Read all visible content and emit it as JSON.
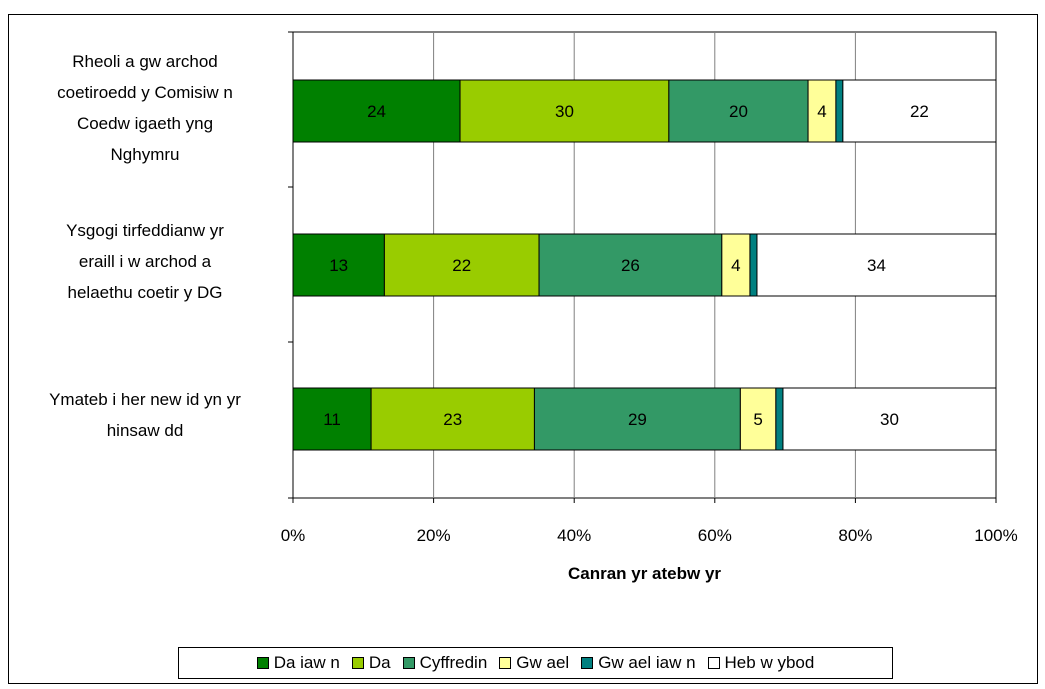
{
  "chart_data": {
    "type": "bar",
    "orientation": "horizontal",
    "stacked": "percent",
    "categories": [
      [
        "Rheoli a gw archod",
        "coetiroedd y Comisiw n",
        "Coedw igaeth yng",
        "Nghymru"
      ],
      [
        "Ysgogi tirfeddianw yr",
        "eraill i w archod a",
        "helaethu coetir y DG"
      ],
      [
        "Ymateb i her new id yn yr",
        "hinsaw dd"
      ]
    ],
    "series": [
      {
        "name": "Da iaw n",
        "color": "#008000",
        "values": [
          24,
          13,
          11
        ]
      },
      {
        "name": "Da",
        "color": "#99CC00",
        "values": [
          30,
          22,
          23
        ]
      },
      {
        "name": "Cyffredin",
        "color": "#339966",
        "values": [
          20,
          26,
          29
        ]
      },
      {
        "name": "Gw ael",
        "color": "#FFFF99",
        "values": [
          4,
          4,
          5
        ]
      },
      {
        "name": "Gw ael iaw n",
        "color": "#008080",
        "values": [
          1,
          1,
          1
        ]
      },
      {
        "name": "Heb w ybod",
        "color": "#FFFFFF",
        "values": [
          22,
          34,
          30
        ]
      }
    ],
    "xlabel": "Canran yr atebw yr",
    "xlim": [
      0,
      100
    ],
    "xticks": [
      "0%",
      "20%",
      "40%",
      "60%",
      "80%",
      "100%"
    ],
    "grid": true,
    "legend": "bottom"
  }
}
